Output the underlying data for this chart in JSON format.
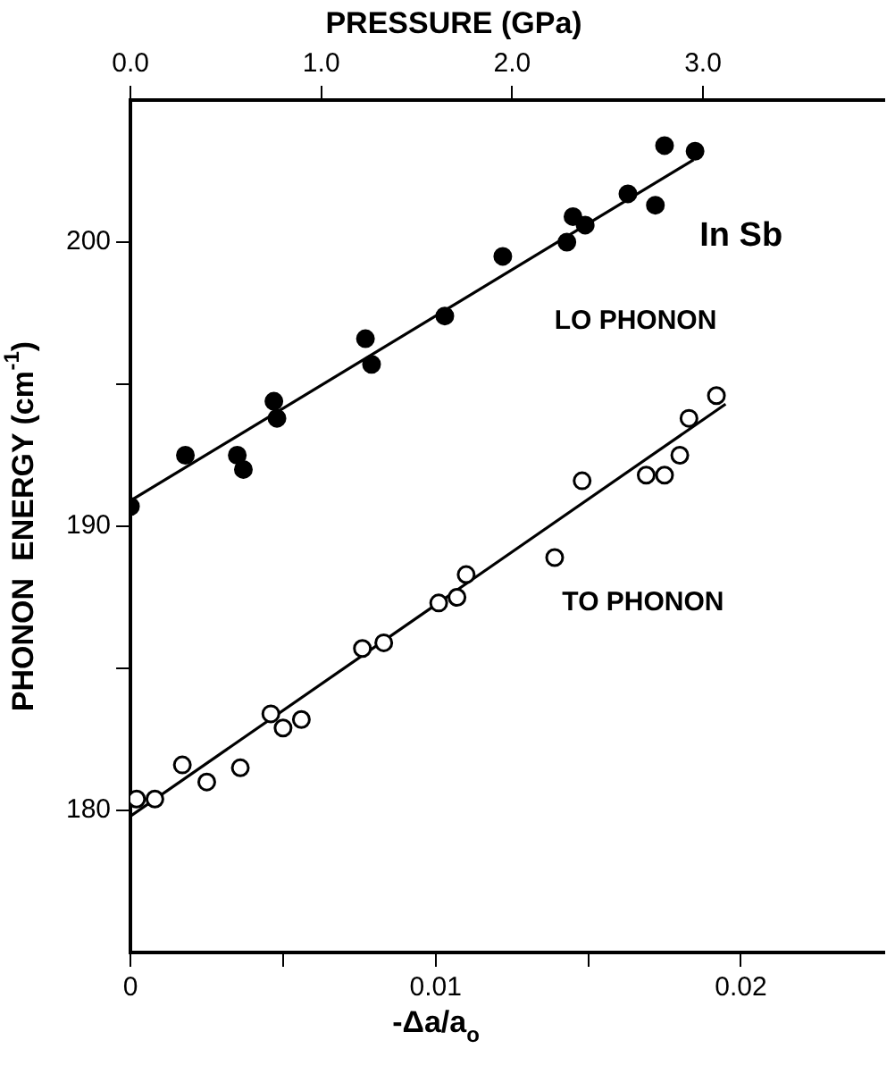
{
  "chart_data": {
    "type": "scatter",
    "xlabel": "-Δa/a$_{o}$",
    "ylabel": "PHONON  ENERGY (cm$^{-1}$)",
    "x2label": "PRESSURE (GPa)",
    "xlim": [
      0,
      0.0247
    ],
    "ylim": [
      175,
      205
    ],
    "xticks": [
      0,
      {
        "value": 0.005,
        "label": null
      },
      0.01,
      {
        "value": 0.015,
        "label": null
      },
      0.02
    ],
    "yticks": [
      180,
      {
        "value": 185,
        "label": null
      },
      190,
      {
        "value": 195,
        "label": null
      },
      200
    ],
    "x2lim": [
      0,
      3.95
    ],
    "x2ticks": [
      {
        "value": 0,
        "label": "0.0"
      },
      {
        "value": 1,
        "label": "1.0"
      },
      {
        "value": 2,
        "label": "2.0"
      },
      {
        "value": 3,
        "label": "3.0"
      }
    ],
    "grid": false,
    "legend": false,
    "marker": "circle",
    "series": [
      {
        "type": "scatter",
        "color": "#000000",
        "x": [
          0,
          0.0018,
          0.0035,
          0.0037,
          0.0047,
          0.0048,
          0.0077,
          0.0079,
          0.0103,
          0.0122,
          0.0143,
          0.0145,
          0.0149,
          0.0163,
          0.0172,
          0.0175,
          0.0185
        ],
        "values": [
          190.7,
          192.5,
          192.5,
          192.0,
          194.4,
          193.8,
          196.6,
          195.7,
          197.4,
          199.5,
          200.0,
          200.9,
          200.6,
          201.7,
          201.3,
          203.4,
          203.2
        ]
      },
      {
        "type": "scatter",
        "color": "#000000",
        "x": [
          0.0002,
          0.0008,
          0.0017,
          0.0025,
          0.0036,
          0.0046,
          0.005,
          0.0056,
          0.0076,
          0.0083,
          0.0101,
          0.0107,
          0.011,
          0.0139,
          0.0148,
          0.0169,
          0.0175,
          0.018,
          0.0183,
          0.0192
        ],
        "values": [
          180.4,
          180.4,
          181.6,
          181.0,
          181.5,
          183.4,
          182.9,
          183.2,
          185.7,
          185.9,
          187.3,
          187.5,
          188.3,
          188.9,
          191.6,
          191.8,
          191.8,
          192.5,
          193.8,
          194.6
        ]
      },
      {
        "type": "line",
        "color": "#000000",
        "marker": "none",
        "line_style": "solid",
        "x": [
          0,
          0.01845
        ],
        "values": [
          190.9,
          202.9
        ]
      },
      {
        "type": "line",
        "color": "#000000",
        "marker": "none",
        "line_style": "solid",
        "x": [
          0,
          0.0195
        ],
        "values": [
          179.8,
          194.3
        ]
      }
    ],
    "annotations": [
      "In Sb",
      "LO PHONON",
      "TO PHONON"
    ]
  }
}
